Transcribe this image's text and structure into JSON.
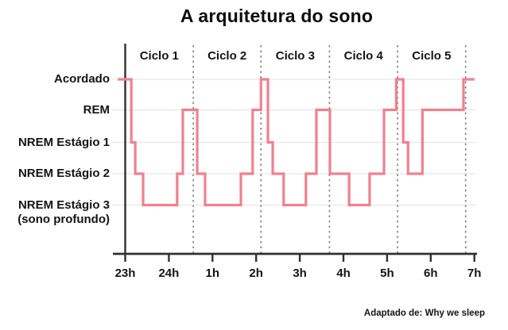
{
  "title": "A arquitetura do sono",
  "caption": "Adaptado de: Why we sleep",
  "colors": {
    "line": "#f0818f",
    "axis": "#303030",
    "grid": "#e6e6e6",
    "dashed": "#7f7f7f",
    "text": "#141414"
  },
  "chart_data": {
    "type": "line",
    "subtype": "step",
    "title": "A arquitetura do sono",
    "source": "Adaptado de: Why we sleep",
    "x_axis": {
      "label": "",
      "range_hours": [
        23,
        31
      ],
      "ticks": [
        {
          "hour": 23,
          "label": "23h"
        },
        {
          "hour": 24,
          "label": "24h"
        },
        {
          "hour": 25,
          "label": "1h"
        },
        {
          "hour": 26,
          "label": "2h"
        },
        {
          "hour": 27,
          "label": "3h"
        },
        {
          "hour": 28,
          "label": "4h"
        },
        {
          "hour": 29,
          "label": "5h"
        },
        {
          "hour": 30,
          "label": "6h"
        },
        {
          "hour": 31,
          "label": "7h"
        }
      ]
    },
    "y_axis": {
      "stages": [
        "Acordado",
        "REM",
        "NREM Estágio 1",
        "NREM Estágio 2",
        "NREM Estágio 3"
      ],
      "deep_sleep_subtitle": "(sono profundo)",
      "grid": true
    },
    "cycles": [
      {
        "label": "Ciclo 1",
        "start_hour": 23.0,
        "end_hour": 24.56
      },
      {
        "label": "Ciclo 2",
        "start_hour": 24.56,
        "end_hour": 26.11
      },
      {
        "label": "Ciclo 3",
        "start_hour": 26.11,
        "end_hour": 27.68
      },
      {
        "label": "Ciclo 4",
        "start_hour": 27.68,
        "end_hour": 29.24
      },
      {
        "label": "Ciclo 5",
        "start_hour": 29.24,
        "end_hour": 30.8
      }
    ],
    "segments": [
      {
        "from": 22.83,
        "to": 23.14,
        "stage": "Acordado"
      },
      {
        "from": 23.14,
        "to": 23.23,
        "stage": "NREM Estágio 1"
      },
      {
        "from": 23.23,
        "to": 23.41,
        "stage": "NREM Estágio 2"
      },
      {
        "from": 23.41,
        "to": 24.19,
        "stage": "NREM Estágio 3"
      },
      {
        "from": 24.19,
        "to": 24.32,
        "stage": "NREM Estágio 2"
      },
      {
        "from": 24.32,
        "to": 24.65,
        "stage": "REM"
      },
      {
        "from": 24.65,
        "to": 24.83,
        "stage": "NREM Estágio 2"
      },
      {
        "from": 24.83,
        "to": 25.65,
        "stage": "NREM Estágio 3"
      },
      {
        "from": 25.65,
        "to": 25.92,
        "stage": "NREM Estágio 2"
      },
      {
        "from": 25.92,
        "to": 26.11,
        "stage": "REM"
      },
      {
        "from": 26.11,
        "to": 26.27,
        "stage": "Acordado"
      },
      {
        "from": 26.27,
        "to": 26.38,
        "stage": "NREM Estágio 1"
      },
      {
        "from": 26.38,
        "to": 26.63,
        "stage": "NREM Estágio 2"
      },
      {
        "from": 26.63,
        "to": 27.14,
        "stage": "NREM Estágio 3"
      },
      {
        "from": 27.14,
        "to": 27.38,
        "stage": "NREM Estágio 2"
      },
      {
        "from": 27.38,
        "to": 27.69,
        "stage": "REM"
      },
      {
        "from": 27.69,
        "to": 28.13,
        "stage": "NREM Estágio 2"
      },
      {
        "from": 28.13,
        "to": 28.6,
        "stage": "NREM Estágio 3"
      },
      {
        "from": 28.6,
        "to": 28.93,
        "stage": "NREM Estágio 2"
      },
      {
        "from": 28.93,
        "to": 29.21,
        "stage": "REM"
      },
      {
        "from": 29.21,
        "to": 29.37,
        "stage": "Acordado"
      },
      {
        "from": 29.37,
        "to": 29.48,
        "stage": "NREM Estágio 1"
      },
      {
        "from": 29.48,
        "to": 29.81,
        "stage": "NREM Estágio 2"
      },
      {
        "from": 29.81,
        "to": 30.75,
        "stage": "REM"
      },
      {
        "from": 30.75,
        "to": 31.0,
        "stage": "Acordado"
      }
    ]
  }
}
